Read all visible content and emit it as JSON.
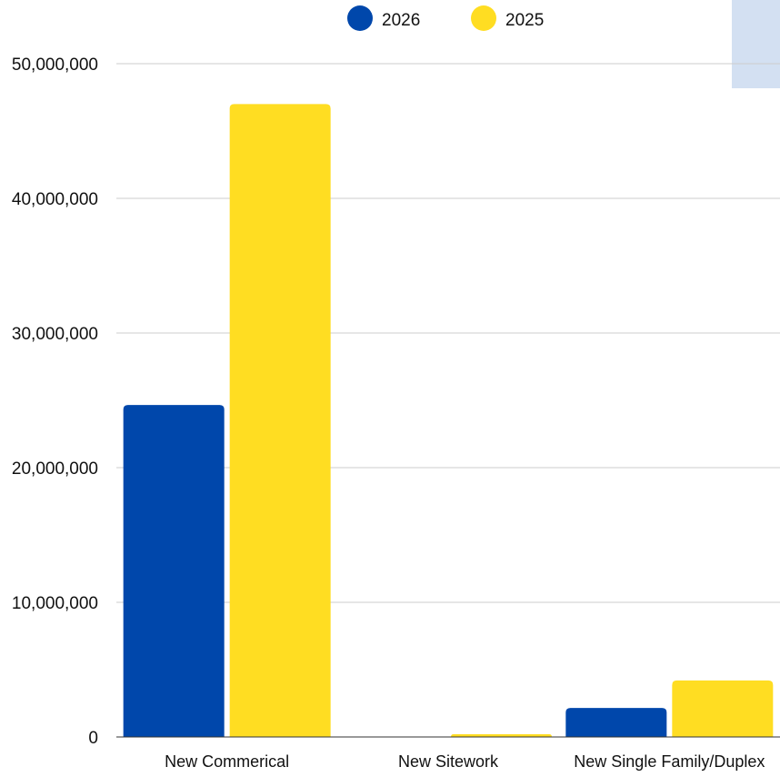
{
  "chart_data": {
    "type": "bar",
    "categories": [
      "New Commerical",
      "New Sitework",
      "New Single Family/Duplex"
    ],
    "series": [
      {
        "name": "2026",
        "color": "#0047AB",
        "values": [
          24650000,
          0,
          2150000
        ]
      },
      {
        "name": "2025",
        "color": "#FFDD22",
        "values": [
          47000000,
          200000,
          4200000
        ]
      }
    ],
    "y_ticks": [
      "0",
      "10,000,000",
      "20,000,000",
      "30,000,000",
      "40,000,000",
      "50,000,000"
    ],
    "ylim": [
      0,
      50000000
    ],
    "grid": true,
    "legend_position": "top-center",
    "title": "",
    "xlabel": "",
    "ylabel": ""
  },
  "colors": {
    "grid": "#cccccc",
    "axis": "#333333",
    "corner_panel": "#d3e0f2"
  }
}
